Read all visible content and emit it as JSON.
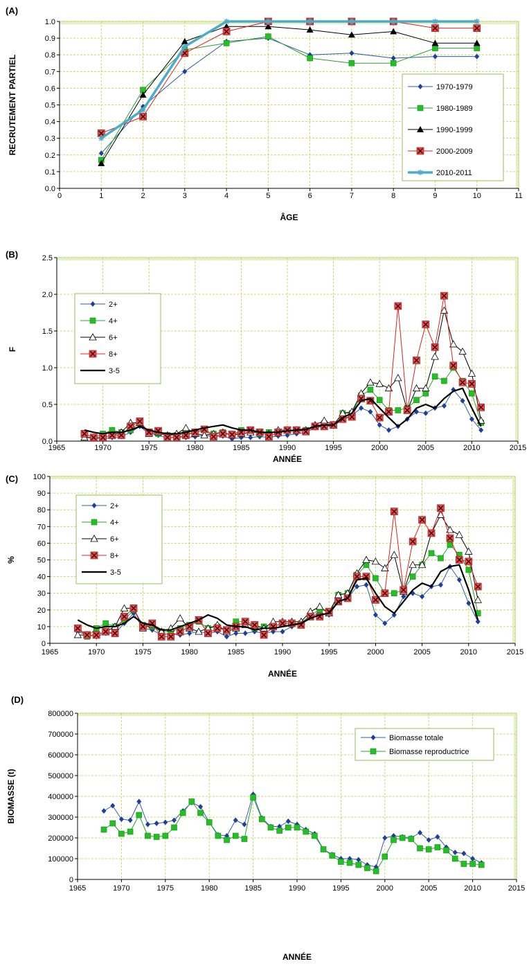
{
  "colors": {
    "panel_bg": "#ffffff",
    "panel_border": "#9bbb59",
    "grid": "#b9d24a",
    "legend_border": "#9bbb59",
    "blue": "#2e5dab",
    "blue_marker": "#1f3f9a",
    "green": "#2ea02e",
    "green_marker": "#22c022",
    "black": "#000000",
    "red": "#e02020",
    "red_marker": "#c62828",
    "cyan": "#4bacc6"
  },
  "chart_data": [
    {
      "id": "A",
      "type": "line",
      "panel_label": "(A)",
      "xlabel": "ÂGE",
      "ylabel": "RECRUTEMENT PARTIEL",
      "xlim": [
        0,
        11
      ],
      "ylim": [
        0,
        1.0
      ],
      "xticks": [
        0,
        1,
        2,
        3,
        4,
        5,
        6,
        7,
        8,
        9,
        10,
        11
      ],
      "yticks": [
        0,
        0.1,
        0.2,
        0.3,
        0.4,
        0.5,
        0.6,
        0.7,
        0.8,
        0.9,
        1.0
      ],
      "ytick_decimals": 1,
      "grid": true,
      "legend_position": "right",
      "x": [
        1,
        2,
        3,
        4,
        5,
        6,
        7,
        8,
        9,
        10
      ],
      "series": [
        {
          "name": "1970-1979",
          "color": "#2e5dab",
          "marker": "diamond",
          "values": [
            0.21,
            0.49,
            0.7,
            0.88,
            0.9,
            0.8,
            0.81,
            0.78,
            0.79,
            0.79
          ]
        },
        {
          "name": "1980-1989",
          "color": "#2ea02e",
          "marker": "square",
          "values": [
            0.17,
            0.59,
            0.83,
            0.87,
            0.91,
            0.78,
            0.75,
            0.75,
            0.84,
            0.84
          ]
        },
        {
          "name": "1990-1999",
          "color": "#000000",
          "marker": "triangle",
          "values": [
            0.15,
            0.56,
            0.88,
            0.97,
            0.97,
            0.95,
            0.92,
            0.94,
            0.87,
            0.87
          ]
        },
        {
          "name": "2000-2009",
          "color": "#e02020",
          "marker": "xsquare",
          "values": [
            0.33,
            0.43,
            0.81,
            0.94,
            1.0,
            1.0,
            1.0,
            1.0,
            0.96,
            0.96
          ]
        },
        {
          "name": "2010-2011",
          "color": "#4bacc6",
          "marker": "star",
          "thick": true,
          "values": [
            0.3,
            0.47,
            0.85,
            1.0,
            1.0,
            1.0,
            1.0,
            1.0,
            1.0,
            1.0
          ]
        }
      ]
    },
    {
      "id": "B",
      "type": "line",
      "panel_label": "(B)",
      "xlabel": "ANNÉE",
      "ylabel": "F",
      "xlim": [
        1965,
        2015
      ],
      "ylim": [
        0,
        2.5
      ],
      "xticks": [
        1965,
        1970,
        1975,
        1980,
        1985,
        1990,
        1995,
        2000,
        2005,
        2010,
        2015
      ],
      "yticks": [
        0,
        0.5,
        1.0,
        1.5,
        2.0,
        2.5
      ],
      "ytick_decimals": 1,
      "grid": true,
      "legend_position": "top-left",
      "x": [
        1968,
        1969,
        1970,
        1971,
        1972,
        1973,
        1974,
        1975,
        1976,
        1977,
        1978,
        1979,
        1980,
        1981,
        1982,
        1983,
        1984,
        1985,
        1986,
        1987,
        1988,
        1989,
        1990,
        1991,
        1992,
        1993,
        1994,
        1995,
        1996,
        1997,
        1998,
        1999,
        2000,
        2001,
        2002,
        2003,
        2004,
        2005,
        2006,
        2007,
        2008,
        2009,
        2010,
        2011
      ],
      "series": [
        {
          "name": "2+",
          "color": "#2e5dab",
          "marker": "diamond",
          "values": [
            0.05,
            0.04,
            0.03,
            0.05,
            0.06,
            0.12,
            0.2,
            0.1,
            0.08,
            0.04,
            0.06,
            0.05,
            0.06,
            0.08,
            0.06,
            0.07,
            0.03,
            0.05,
            0.05,
            0.06,
            0.05,
            0.07,
            0.08,
            0.1,
            0.12,
            0.18,
            0.2,
            0.2,
            0.3,
            0.35,
            0.45,
            0.4,
            0.22,
            0.15,
            0.2,
            0.3,
            0.4,
            0.38,
            0.45,
            0.48,
            0.7,
            0.55,
            0.3,
            0.15
          ]
        },
        {
          "name": "4+",
          "color": "#2ea02e",
          "marker": "square",
          "values": [
            0.1,
            0.05,
            0.1,
            0.15,
            0.12,
            0.15,
            0.25,
            0.12,
            0.1,
            0.08,
            0.08,
            0.1,
            0.12,
            0.15,
            0.1,
            0.12,
            0.08,
            0.15,
            0.15,
            0.1,
            0.12,
            0.12,
            0.14,
            0.14,
            0.15,
            0.2,
            0.24,
            0.22,
            0.38,
            0.38,
            0.62,
            0.7,
            0.56,
            0.42,
            0.42,
            0.45,
            0.56,
            0.65,
            0.88,
            0.82,
            1.0,
            0.82,
            0.65,
            0.25
          ]
        },
        {
          "name": "6+",
          "color": "#000000",
          "marker": "opentriangle",
          "values": [
            0.05,
            0.05,
            0.05,
            0.08,
            0.12,
            0.25,
            0.25,
            0.1,
            0.12,
            0.08,
            0.1,
            0.18,
            0.1,
            0.08,
            0.1,
            0.12,
            0.08,
            0.1,
            0.12,
            0.12,
            0.1,
            0.15,
            0.15,
            0.15,
            0.15,
            0.22,
            0.28,
            0.22,
            0.38,
            0.4,
            0.65,
            0.8,
            0.78,
            0.72,
            0.86,
            0.42,
            0.72,
            0.72,
            1.15,
            1.78,
            1.32,
            1.22,
            0.92,
            0.28
          ]
        },
        {
          "name": "8+",
          "color": "#e02020",
          "marker": "xsquare",
          "values": [
            0.1,
            0.05,
            0.05,
            0.08,
            0.08,
            0.2,
            0.27,
            0.12,
            0.14,
            0.05,
            0.05,
            0.08,
            0.12,
            0.16,
            0.06,
            0.1,
            0.09,
            0.12,
            0.15,
            0.12,
            0.06,
            0.12,
            0.15,
            0.15,
            0.13,
            0.2,
            0.2,
            0.22,
            0.3,
            0.33,
            0.58,
            0.55,
            0.32,
            0.4,
            1.84,
            0.42,
            1.1,
            1.59,
            1.28,
            1.98,
            1.03,
            0.8,
            0.78,
            0.46
          ]
        },
        {
          "name": "3-5",
          "color": "#000000",
          "marker": "none",
          "thick": true,
          "values": [
            0.15,
            0.12,
            0.1,
            0.12,
            0.12,
            0.15,
            0.2,
            0.15,
            0.12,
            0.1,
            0.1,
            0.12,
            0.15,
            0.18,
            0.2,
            0.22,
            0.18,
            0.15,
            0.15,
            0.12,
            0.12,
            0.12,
            0.14,
            0.15,
            0.16,
            0.2,
            0.22,
            0.22,
            0.32,
            0.38,
            0.55,
            0.58,
            0.45,
            0.32,
            0.2,
            0.3,
            0.45,
            0.5,
            0.45,
            0.58,
            0.68,
            0.72,
            0.45,
            0.2
          ]
        }
      ]
    },
    {
      "id": "C",
      "type": "line",
      "panel_label": "(C)",
      "xlabel": "ANNÉE",
      "ylabel": "%",
      "xlim": [
        1965,
        2015
      ],
      "ylim": [
        0,
        100
      ],
      "xticks": [
        1965,
        1970,
        1975,
        1980,
        1985,
        1990,
        1995,
        2000,
        2005,
        2010,
        2015
      ],
      "yticks": [
        0,
        10,
        20,
        30,
        40,
        50,
        60,
        70,
        80,
        90,
        100
      ],
      "ytick_decimals": 0,
      "grid": true,
      "legend_position": "top-left",
      "x": [
        1968,
        1969,
        1970,
        1971,
        1972,
        1973,
        1974,
        1975,
        1976,
        1977,
        1978,
        1979,
        1980,
        1981,
        1982,
        1983,
        1984,
        1985,
        1986,
        1987,
        1988,
        1989,
        1990,
        1991,
        1992,
        1993,
        1994,
        1995,
        1996,
        1997,
        1998,
        1999,
        2000,
        2001,
        2002,
        2003,
        2004,
        2005,
        2006,
        2007,
        2008,
        2009,
        2010,
        2011
      ],
      "series": [
        {
          "name": "2+",
          "color": "#2e5dab",
          "marker": "diamond",
          "values": [
            7,
            5,
            4,
            6,
            6,
            12,
            18,
            9,
            8,
            5,
            6,
            5,
            6,
            7,
            6,
            7,
            4,
            6,
            6,
            7,
            6,
            7,
            7,
            10,
            12,
            16,
            18,
            17,
            25,
            27,
            34,
            35,
            17,
            12,
            17,
            28,
            30,
            28,
            34,
            35,
            46,
            38,
            24,
            13
          ]
        },
        {
          "name": "4+",
          "color": "#2ea02e",
          "marker": "square",
          "values": [
            9,
            4,
            9,
            12,
            10,
            14,
            20,
            11,
            10,
            7,
            7,
            9,
            11,
            13,
            9,
            10,
            7,
            13,
            13,
            9,
            10,
            10,
            12,
            12,
            12,
            17,
            20,
            19,
            29,
            30,
            41,
            47,
            39,
            30,
            30,
            32,
            40,
            47,
            54,
            51,
            59,
            53,
            44,
            18
          ]
        },
        {
          "name": "6+",
          "color": "#000000",
          "marker": "opentriangle",
          "values": [
            5,
            5,
            5,
            7,
            10,
            21,
            21,
            9,
            11,
            7,
            9,
            15,
            9,
            7,
            9,
            11,
            7,
            9,
            11,
            11,
            9,
            13,
            13,
            13,
            13,
            19,
            22,
            18,
            29,
            30,
            42,
            50,
            49,
            45,
            53,
            31,
            47,
            47,
            66,
            77,
            68,
            65,
            55,
            26
          ]
        },
        {
          "name": "8+",
          "color": "#e02020",
          "marker": "xsquare",
          "values": [
            9,
            5,
            5,
            7,
            6,
            16,
            21,
            10,
            12,
            4,
            4,
            7,
            10,
            14,
            6,
            9,
            8,
            10,
            13,
            11,
            5,
            10,
            12,
            12,
            11,
            16,
            16,
            19,
            25,
            27,
            40,
            40,
            26,
            30,
            79,
            32,
            61,
            74,
            66,
            81,
            63,
            50,
            49,
            34
          ]
        },
        {
          "name": "3-5",
          "color": "#000000",
          "marker": "none",
          "thick": true,
          "values": [
            14,
            11,
            9,
            10,
            10,
            12,
            16,
            12,
            11,
            8,
            8,
            10,
            12,
            14,
            17,
            15,
            11,
            10,
            10,
            8,
            9,
            9,
            10,
            11,
            12,
            15,
            17,
            18,
            25,
            27,
            38,
            39,
            30,
            22,
            18,
            25,
            32,
            36,
            34,
            43,
            46,
            47,
            32,
            14
          ]
        }
      ]
    },
    {
      "id": "D",
      "type": "line",
      "panel_label": "(D)",
      "xlabel": "ANNÉE",
      "ylabel": "BIOMASSE (t)",
      "xlim": [
        1965,
        2015
      ],
      "ylim": [
        0,
        800000
      ],
      "xticks": [
        1965,
        1970,
        1975,
        1980,
        1985,
        1990,
        1995,
        2000,
        2005,
        2010,
        2015
      ],
      "yticks": [
        0,
        100000,
        200000,
        300000,
        400000,
        500000,
        600000,
        700000,
        800000
      ],
      "ytick_decimals": 0,
      "grid": true,
      "legend_position": "top-right",
      "x": [
        1968,
        1969,
        1970,
        1971,
        1972,
        1973,
        1974,
        1975,
        1976,
        1977,
        1978,
        1979,
        1980,
        1981,
        1982,
        1983,
        1984,
        1985,
        1986,
        1987,
        1988,
        1989,
        1990,
        1991,
        1992,
        1993,
        1994,
        1995,
        1996,
        1997,
        1998,
        1999,
        2000,
        2001,
        2002,
        2003,
        2004,
        2005,
        2006,
        2007,
        2008,
        2009,
        2010,
        2011
      ],
      "series": [
        {
          "name": "Biomasse totale",
          "color": "#2e5dab",
          "marker": "diamond",
          "values": [
            330000,
            355000,
            290000,
            285000,
            375000,
            265000,
            270000,
            275000,
            285000,
            330000,
            370000,
            350000,
            275000,
            215000,
            210000,
            285000,
            265000,
            410000,
            295000,
            255000,
            255000,
            280000,
            265000,
            240000,
            220000,
            145000,
            120000,
            100000,
            100000,
            95000,
            70000,
            60000,
            200000,
            210000,
            205000,
            200000,
            225000,
            190000,
            205000,
            155000,
            130000,
            125000,
            100000,
            80000
          ]
        },
        {
          "name": "Biomasse reproductrice",
          "color": "#2ea02e",
          "marker": "square",
          "values": [
            240000,
            270000,
            220000,
            230000,
            310000,
            210000,
            205000,
            210000,
            250000,
            320000,
            375000,
            320000,
            275000,
            210000,
            190000,
            210000,
            195000,
            395000,
            290000,
            250000,
            235000,
            250000,
            250000,
            230000,
            210000,
            145000,
            115000,
            85000,
            80000,
            70000,
            55000,
            40000,
            110000,
            190000,
            200000,
            195000,
            150000,
            145000,
            155000,
            140000,
            100000,
            75000,
            75000,
            70000
          ]
        }
      ]
    }
  ]
}
